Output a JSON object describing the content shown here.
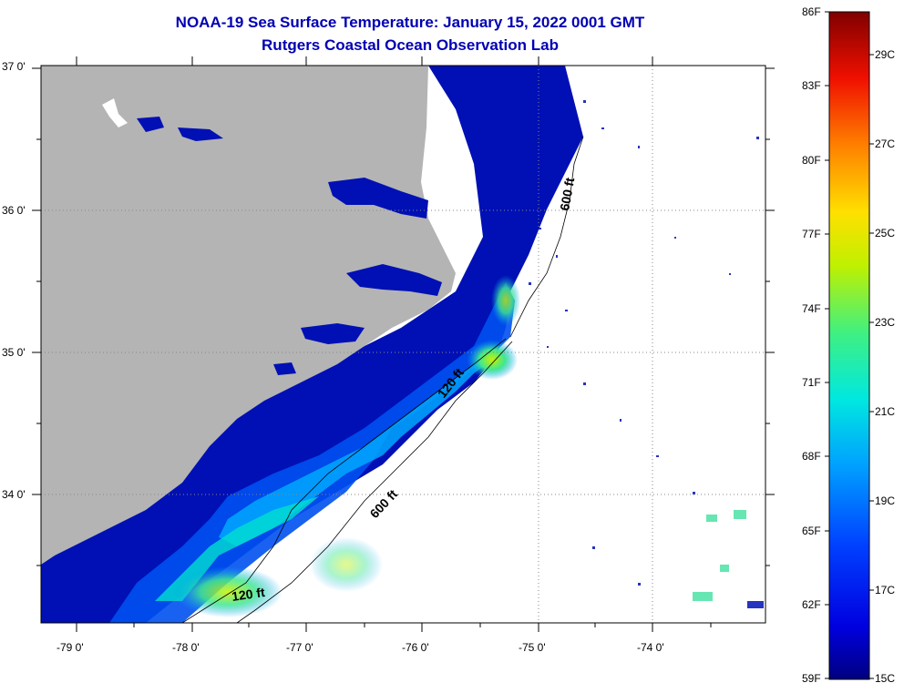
{
  "title_line1": "NOAA-19 Sea Surface Temperature:  January 15, 2022 0001 GMT",
  "title_line2": "Rutgers Coastal Ocean Observation Lab",
  "lat_labels": [
    "37 0'",
    "36 0'",
    "35 0'",
    "34 0'"
  ],
  "lon_labels": [
    "-79 0'",
    "-78 0'",
    "-77 0'",
    "-76 0'",
    "-75 0'",
    "-74 0'"
  ],
  "isobath_labels": {
    "a": "120 ft",
    "b": "600 ft",
    "c": "120 ft",
    "d": "600 ft"
  },
  "colorbar": {
    "f_labels": [
      "86F",
      "83F",
      "80F",
      "77F",
      "74F",
      "71F",
      "68F",
      "65F",
      "62F",
      "59F"
    ],
    "c_labels": [
      "29C",
      "27C",
      "25C",
      "23C",
      "21C",
      "19C",
      "17C",
      "15C"
    ]
  },
  "colors": {
    "land": "#b4b4b4",
    "cold_water": "#0010b4",
    "title": "#0000b4"
  }
}
